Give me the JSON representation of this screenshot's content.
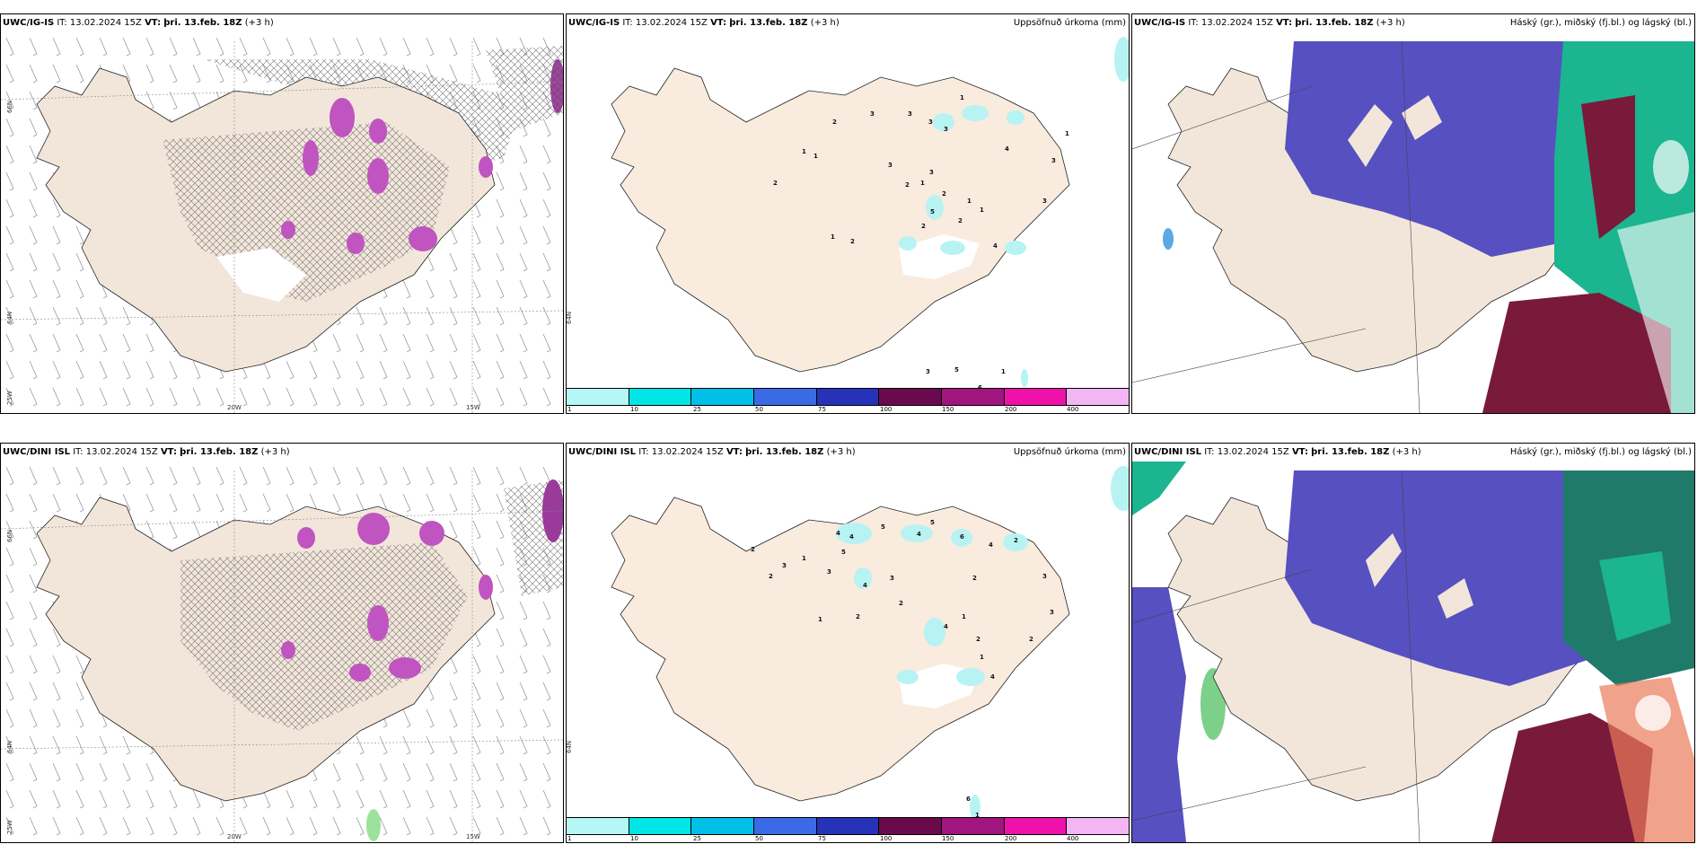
{
  "panels": [
    {
      "id": "p1",
      "model": "UWC/IG-IS",
      "it_label": "IT:",
      "it_value": "13.02.2024 15Z",
      "vt_label": "VT:",
      "vt_value": "þri. 13.feb. 18Z",
      "lead": "(+3 h)",
      "right_title": "",
      "lat_labels": [
        "66N",
        "64N",
        "25W"
      ],
      "lon_labels": [
        "20W",
        "15W"
      ]
    },
    {
      "id": "p2",
      "model": "UWC/IG-IS",
      "it_label": "IT:",
      "it_value": "13.02.2024 15Z",
      "vt_label": "VT:",
      "vt_value": "þri. 13.feb. 18Z",
      "lead": "(+3 h)",
      "right_title": "Uppsöfnuð úrkoma (mm)",
      "side_lat": "64N",
      "numbers": [
        "1",
        "2",
        "3",
        "3",
        "3",
        "1",
        "1",
        "3",
        "2",
        "4",
        "3",
        "3",
        "1",
        "2",
        "1",
        "3",
        "2",
        "3",
        "5",
        "2",
        "4",
        "1",
        "2",
        "1",
        "2",
        "1",
        "3",
        "5",
        "1",
        "6"
      ]
    },
    {
      "id": "p3",
      "model": "UWC/IG-IS",
      "it_label": "IT:",
      "it_value": "13.02.2024 15Z",
      "vt_label": "VT:",
      "vt_value": "þri. 13.feb. 18Z",
      "lead": "(+3 h)",
      "right_title": "Háský (gr.), miðský (fj.bl.) og lágský (bl.)"
    },
    {
      "id": "p4",
      "model": "UWC/DINI ISL",
      "it_label": "IT:",
      "it_value": "13.02.2024 15Z",
      "vt_label": "VT:",
      "vt_value": "þri. 13.feb. 18Z",
      "lead": "(+3 h)",
      "right_title": "",
      "lat_labels": [
        "66N",
        "64N",
        "25W"
      ],
      "lon_labels": [
        "20W",
        "15W"
      ]
    },
    {
      "id": "p5",
      "model": "UWC/DINI ISL",
      "it_label": "IT:",
      "it_value": "13.02.2024 15Z",
      "vt_label": "VT:",
      "vt_value": "þri. 13.feb. 18Z",
      "lead": "(+3 h)",
      "right_title": "Uppsöfnuð úrkoma (mm)",
      "side_lat": "64N",
      "numbers": [
        "4",
        "4",
        "5",
        "4",
        "5",
        "2",
        "3",
        "1",
        "2",
        "3",
        "5",
        "4",
        "3",
        "2",
        "6",
        "2",
        "4",
        "2",
        "3",
        "1",
        "4",
        "2",
        "2",
        "1",
        "2",
        "4",
        "1",
        "3",
        "6",
        "1"
      ]
    },
    {
      "id": "p6",
      "model": "UWC/DINI ISL",
      "it_label": "IT:",
      "it_value": "13.02.2024 15Z",
      "vt_label": "VT:",
      "vt_value": "þri. 13.feb. 18Z",
      "lead": "(+3 h)",
      "right_title": "Háský (gr.), miðský (fj.bl.) og lágský (bl.)"
    }
  ],
  "colorbar": {
    "colors": [
      "#b5f6f6",
      "#00e6e6",
      "#00c0e8",
      "#3b6ae6",
      "#2632b8",
      "#6a0a4c",
      "#a0157e",
      "#ee11aa",
      "#f3b6f3"
    ],
    "ticks": [
      "1",
      "10",
      "25",
      "50",
      "75",
      "100",
      "150",
      "200",
      "400"
    ]
  },
  "colors": {
    "land": "#f2e6da",
    "snow": "#ffffff",
    "precip_light": "#b8f3f3",
    "high_cloud": "#1bb58f",
    "mid_cloud": "#7a1a3a",
    "low_cloud": "#5650c0"
  }
}
